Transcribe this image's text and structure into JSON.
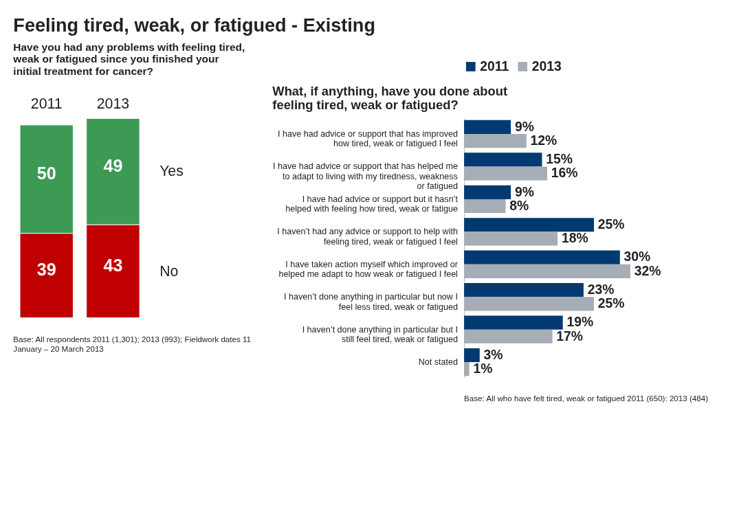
{
  "chart_data": [
    {
      "type": "bar",
      "title": "Feeling tired, weak, or fatigued - Existing",
      "subtitle": "Have you had any problems with feeling tired, weak or fatigued since you finished your initial treatment for cancer?",
      "categories": [
        "2011",
        "2013"
      ],
      "stacked": true,
      "data_labels": true,
      "legend": false,
      "series": [
        {
          "name": "No",
          "color": "#c00000",
          "values": [
            39,
            43
          ]
        },
        {
          "name": "Yes",
          "color": "#3c9a55",
          "values": [
            50,
            49
          ]
        }
      ],
      "annotations": [
        "Base:   All respondents  2011 (1,301); 2013 (993); Fieldwork dates 11 January – 20 March 2013"
      ]
    },
    {
      "type": "bar",
      "orientation": "horizontal",
      "title": "What, if anything, have you done about feeling tired, weak or fatigued?",
      "legend": "top",
      "categories": [
        "I have had advice or support that has improved how tired, weak or fatigued I feel",
        "I have had advice or support that has helped me to adapt to living with my tiredness, weakness or fatigued",
        "I have had advice or support but it hasn’t helped with feeling how tired, weak or fatigue",
        "I haven’t had any advice or support to help with feeling tired, weak or fatigued I feel",
        "I have taken action myself which improved or helped me adapt to how  weak or fatigued I feel",
        "I haven’t done anything in particular but now I feel less tired, weak or fatigued",
        "I haven’t done anything in particular but I still feel tired, weak or fatigued",
        "Not stated"
      ],
      "series": [
        {
          "name": "2011",
          "color": "#003a70",
          "values": [
            9,
            15,
            9,
            25,
            30,
            23,
            19,
            3
          ],
          "value_labels": [
            "9%",
            "15%",
            "9%",
            "25%",
            "30%",
            "23%",
            "19%",
            "3%"
          ]
        },
        {
          "name": "2013",
          "color": "#a6adb6",
          "values": [
            12,
            16,
            8,
            18,
            32,
            25,
            17,
            1
          ],
          "value_labels": [
            "12%",
            "16%",
            "8%",
            "18%",
            "32%",
            "25%",
            "17%",
            "1%"
          ]
        }
      ],
      "annotations": [
        "Base:   All who have felt tired, weak or fatigued 2011 (650): 2013 (484)"
      ]
    }
  ]
}
